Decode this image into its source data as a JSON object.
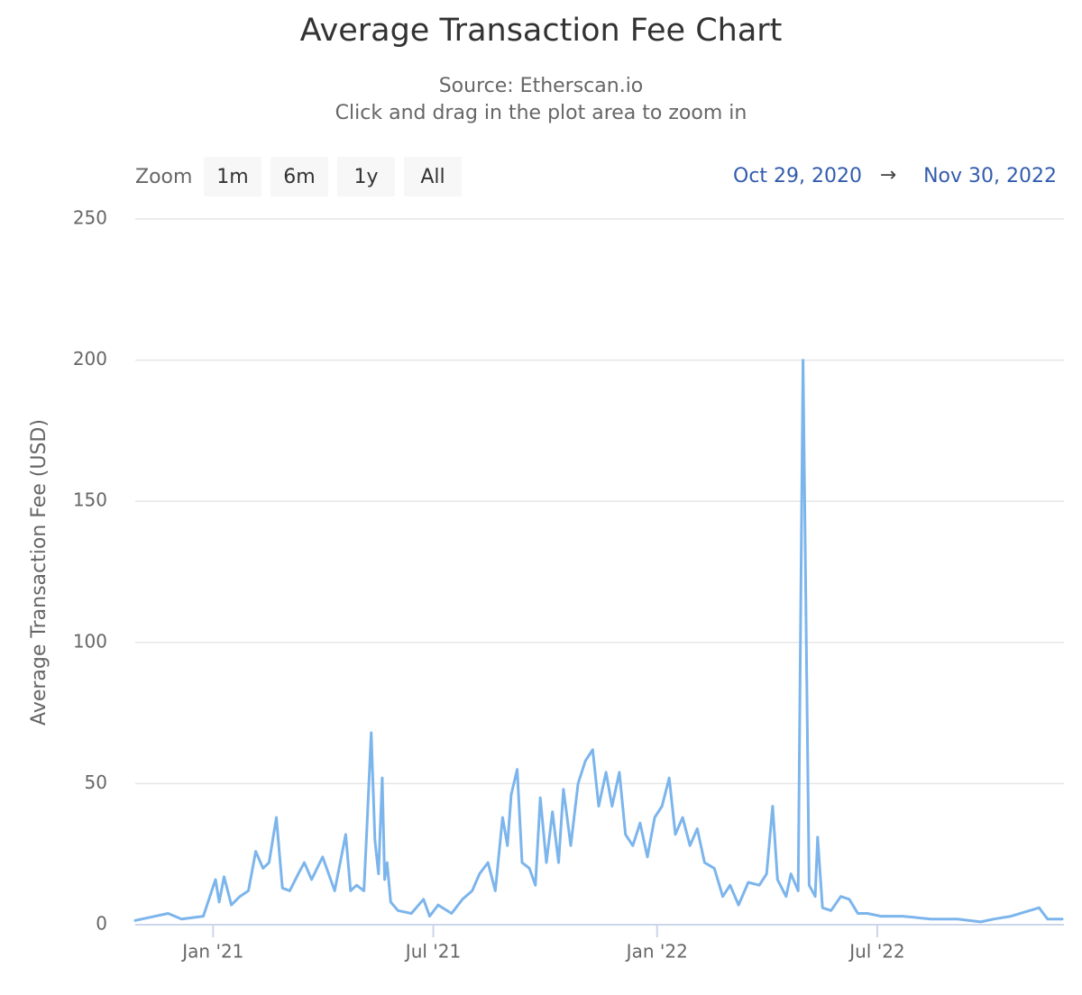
{
  "chart_data": {
    "type": "line",
    "title": "Average Transaction Fee Chart",
    "subtitle": [
      "Source: Etherscan.io",
      "Click and drag in the plot area to zoom in"
    ],
    "zoom_label": "Zoom",
    "zoom_buttons": [
      "1m",
      "6m",
      "1y",
      "All"
    ],
    "range": {
      "from": "Oct 29, 2020",
      "arrow": "→",
      "to": "Nov 30, 2022"
    },
    "y_label": "Average Transaction Fee (USD)",
    "color": "#7cb5ec",
    "grid": true,
    "xlim": [
      "2020-10-29",
      "2022-11-30"
    ],
    "xticks": [
      {
        "value": "2021-01-01",
        "label": "Jan '21"
      },
      {
        "value": "2021-07-01",
        "label": "Jul '21"
      },
      {
        "value": "2022-01-01",
        "label": "Jan '22"
      },
      {
        "value": "2022-07-01",
        "label": "Jul '22"
      }
    ],
    "ylim": [
      0,
      250
    ],
    "yticks": [
      0,
      50,
      100,
      150,
      200,
      250
    ],
    "x": [
      "2020-10-29",
      "2020-11-25",
      "2020-12-06",
      "2020-12-24",
      "2021-01-03",
      "2021-01-06",
      "2021-01-10",
      "2021-01-16",
      "2021-01-23",
      "2021-01-30",
      "2021-02-05",
      "2021-02-11",
      "2021-02-16",
      "2021-02-22",
      "2021-02-27",
      "2021-03-05",
      "2021-03-12",
      "2021-03-17",
      "2021-03-23",
      "2021-04-01",
      "2021-04-06",
      "2021-04-11",
      "2021-04-20",
      "2021-04-24",
      "2021-04-29",
      "2021-05-05",
      "2021-05-07",
      "2021-05-11",
      "2021-05-14",
      "2021-05-17",
      "2021-05-20",
      "2021-05-22",
      "2021-05-24",
      "2021-05-27",
      "2021-06-02",
      "2021-06-13",
      "2021-06-23",
      "2021-06-28",
      "2021-07-05",
      "2021-07-16",
      "2021-07-25",
      "2021-08-02",
      "2021-08-08",
      "2021-08-15",
      "2021-08-21",
      "2021-08-27",
      "2021-08-31",
      "2021-09-03",
      "2021-09-08",
      "2021-09-12",
      "2021-09-18",
      "2021-09-23",
      "2021-09-27",
      "2021-10-02",
      "2021-10-07",
      "2021-10-12",
      "2021-10-16",
      "2021-10-22",
      "2021-10-28",
      "2021-11-03",
      "2021-11-09",
      "2021-11-14",
      "2021-11-20",
      "2021-11-25",
      "2021-12-01",
      "2021-12-06",
      "2021-12-12",
      "2021-12-18",
      "2021-12-24",
      "2021-12-30",
      "2022-01-05",
      "2022-01-11",
      "2022-01-16",
      "2022-01-22",
      "2022-01-28",
      "2022-02-03",
      "2022-02-09",
      "2022-02-17",
      "2022-02-24",
      "2022-03-02",
      "2022-03-09",
      "2022-03-17",
      "2022-03-26",
      "2022-04-01",
      "2022-04-06",
      "2022-04-10",
      "2022-04-17",
      "2022-04-21",
      "2022-04-27",
      "2022-05-01",
      "2022-05-06",
      "2022-05-11",
      "2022-05-13",
      "2022-05-17",
      "2022-05-24",
      "2022-06-01",
      "2022-06-08",
      "2022-06-15",
      "2022-06-23",
      "2022-07-04",
      "2022-07-22",
      "2022-08-14",
      "2022-09-05",
      "2022-09-24",
      "2022-10-05",
      "2022-10-19",
      "2022-11-11",
      "2022-11-18",
      "2022-11-30"
    ],
    "values": [
      1.5,
      4,
      2,
      3,
      16,
      8,
      17,
      7,
      10,
      12,
      26,
      20,
      22,
      38,
      13,
      12,
      18,
      22,
      16,
      24,
      18,
      12,
      32,
      12,
      14,
      12,
      30,
      68,
      30,
      18,
      52,
      16,
      22,
      8,
      5,
      4,
      9,
      3,
      7,
      4,
      9,
      12,
      18,
      22,
      12,
      38,
      28,
      46,
      55,
      22,
      20,
      14,
      45,
      22,
      40,
      22,
      48,
      28,
      50,
      58,
      62,
      42,
      54,
      42,
      54,
      32,
      28,
      36,
      24,
      38,
      42,
      52,
      32,
      38,
      28,
      34,
      22,
      20,
      10,
      14,
      7,
      15,
      14,
      18,
      42,
      16,
      10,
      18,
      12,
      200,
      14,
      10,
      31,
      6,
      5,
      10,
      9,
      4,
      4,
      3,
      3,
      2,
      2,
      1,
      2,
      3,
      6,
      2,
      2
    ]
  }
}
